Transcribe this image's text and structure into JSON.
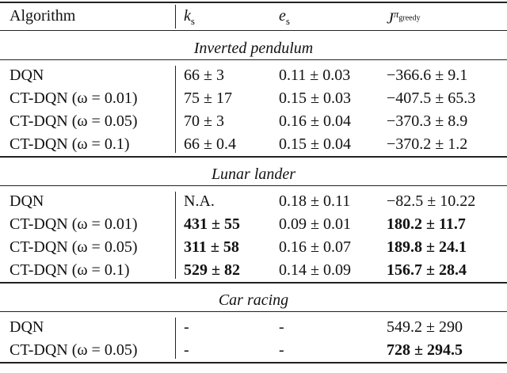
{
  "header": {
    "algorithm": "Algorithm",
    "ks": {
      "main": "k",
      "sub": "s"
    },
    "es": {
      "main": "e",
      "sub": "s"
    },
    "j": {
      "main": "J",
      "sup": "π",
      "sup_sub": "greedy"
    }
  },
  "sections": [
    {
      "title": "Inverted pendulum",
      "rows": [
        {
          "cells": [
            "DQN",
            "66 ± 3",
            "0.11 ± 0.03",
            "−366.6 ± 9.1"
          ],
          "bold": [
            false,
            false,
            false,
            false
          ]
        },
        {
          "cells": [
            "CT-DQN (ω = 0.01)",
            "75 ± 17",
            "0.15 ± 0.03",
            "−407.5 ± 65.3"
          ],
          "bold": [
            false,
            false,
            false,
            false
          ]
        },
        {
          "cells": [
            "CT-DQN (ω = 0.05)",
            "70 ± 3",
            "0.16 ± 0.04",
            "−370.3 ± 8.9"
          ],
          "bold": [
            false,
            false,
            false,
            false
          ]
        },
        {
          "cells": [
            "CT-DQN (ω = 0.1)",
            "66 ± 0.4",
            "0.15 ± 0.04",
            "−370.2 ± 1.2"
          ],
          "bold": [
            false,
            false,
            false,
            false
          ]
        }
      ]
    },
    {
      "title": "Lunar lander",
      "rows": [
        {
          "cells": [
            "DQN",
            "N.A.",
            "0.18 ± 0.11",
            "−82.5 ± 10.22"
          ],
          "bold": [
            false,
            false,
            false,
            false
          ]
        },
        {
          "cells": [
            "CT-DQN (ω = 0.01)",
            "431 ± 55",
            "0.09 ± 0.01",
            "180.2 ± 11.7"
          ],
          "bold": [
            false,
            true,
            false,
            true
          ]
        },
        {
          "cells": [
            "CT-DQN (ω = 0.05)",
            "311 ± 58",
            "0.16 ± 0.07",
            "189.8 ± 24.1"
          ],
          "bold": [
            false,
            true,
            false,
            true
          ]
        },
        {
          "cells": [
            "CT-DQN (ω = 0.1)",
            "529 ± 82",
            "0.14 ± 0.09",
            "156.7 ± 28.4"
          ],
          "bold": [
            false,
            true,
            false,
            true
          ]
        }
      ]
    },
    {
      "title": "Car racing",
      "rows": [
        {
          "cells": [
            "DQN",
            "-",
            "-",
            "549.2 ± 290"
          ],
          "bold": [
            false,
            false,
            false,
            false
          ]
        },
        {
          "cells": [
            "CT-DQN (ω = 0.05)",
            "-",
            "-",
            "728 ± 294.5"
          ],
          "bold": [
            false,
            false,
            false,
            true
          ]
        }
      ]
    }
  ]
}
